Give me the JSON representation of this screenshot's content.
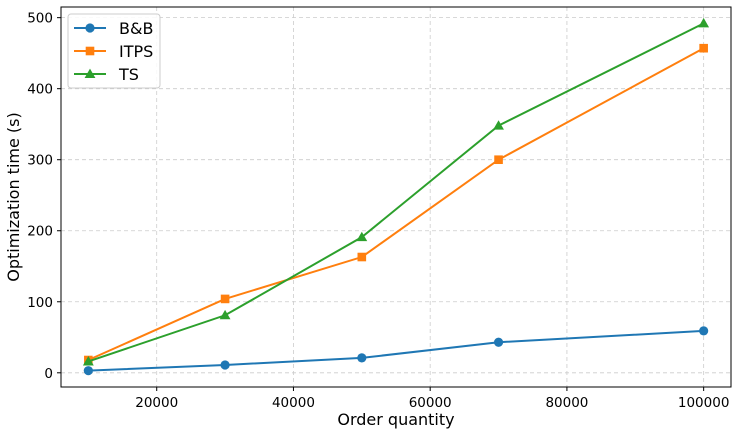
{
  "chart_data": {
    "type": "line",
    "title": "",
    "xlabel": "Order quantity",
    "ylabel": "Optimization time (s)",
    "x": [
      10000,
      30000,
      50000,
      70000,
      100000
    ],
    "xlim": [
      6000,
      104000
    ],
    "ylim": [
      -20,
      515
    ],
    "xticks": [
      20000,
      40000,
      60000,
      80000,
      100000
    ],
    "yticks": [
      0,
      100,
      200,
      300,
      400,
      500
    ],
    "grid": true,
    "legend_position": "top-left",
    "series": [
      {
        "name": "B&B",
        "values": [
          3,
          11,
          21,
          43,
          59
        ],
        "color": "#1f77b4",
        "marker": "circle"
      },
      {
        "name": "ITPS",
        "values": [
          18,
          104,
          163,
          300,
          457
        ],
        "color": "#ff7f0e",
        "marker": "square"
      },
      {
        "name": "TS",
        "values": [
          16,
          81,
          191,
          348,
          492
        ],
        "color": "#2ca02c",
        "marker": "triangle"
      }
    ]
  }
}
